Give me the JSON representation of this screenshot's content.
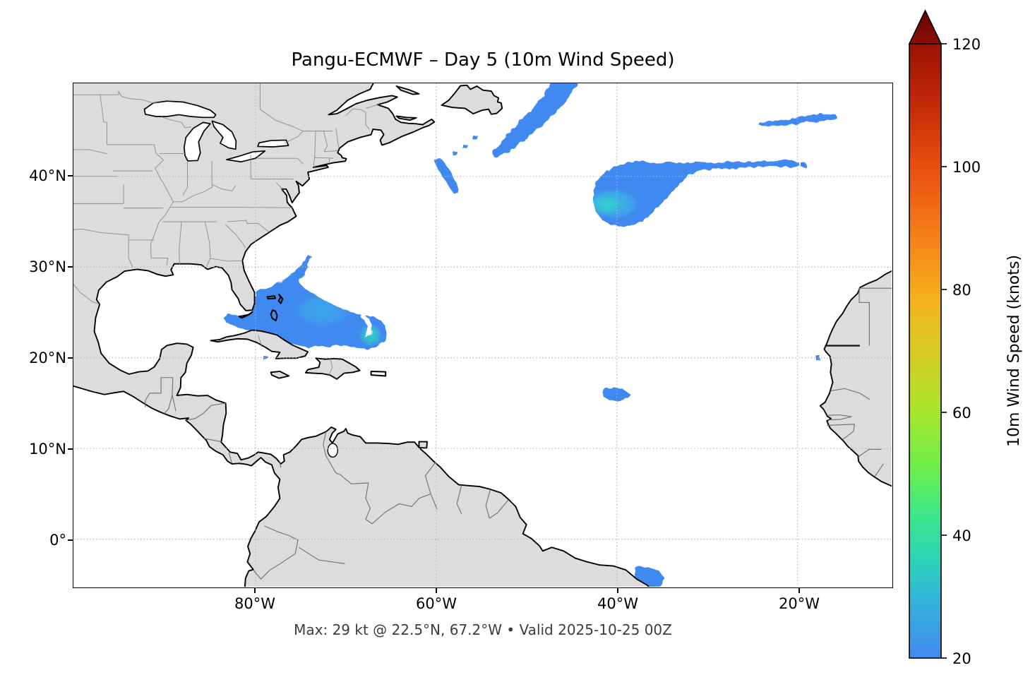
{
  "figure": {
    "title": "Pangu-ECMWF – Day 5 (10m Wind Speed)",
    "caption": "Max: 29 kt @ 22.5°N, 67.2°W • Valid 2025-10-25 00Z"
  },
  "axes": {
    "x_ticks": [
      {
        "label": "80°W",
        "lon": -80
      },
      {
        "label": "60°W",
        "lon": -60
      },
      {
        "label": "40°W",
        "lon": -40
      },
      {
        "label": "20°W",
        "lon": -20
      }
    ],
    "y_ticks": [
      {
        "label": "40°N",
        "lat": 40
      },
      {
        "label": "30°N",
        "lat": 30
      },
      {
        "label": "20°N",
        "lat": 20
      },
      {
        "label": "10°N",
        "lat": 10
      },
      {
        "label": "0°",
        "lat": 0
      }
    ],
    "extent": {
      "lon_min": -100.1,
      "lon_max": -9.7,
      "lat_min": -5.25,
      "lat_max": 50.26
    },
    "grid_color": "#b3b3b3"
  },
  "colorbar": {
    "label": "10m Wind Speed (knots)",
    "min": 20,
    "max": 120,
    "extend": "max",
    "ticks": [
      20,
      40,
      60,
      80,
      100,
      120
    ],
    "gradient": [
      {
        "off": 0.0,
        "c": "#4489f0"
      },
      {
        "off": 0.1,
        "c": "#31b7d8"
      },
      {
        "off": 0.16,
        "c": "#2bd3b5"
      },
      {
        "off": 0.23,
        "c": "#3ae68c"
      },
      {
        "off": 0.3,
        "c": "#66ef50"
      },
      {
        "off": 0.4,
        "c": "#a7e62c"
      },
      {
        "off": 0.5,
        "c": "#d9cb20"
      },
      {
        "off": 0.58,
        "c": "#f3b41c"
      },
      {
        "off": 0.68,
        "c": "#f5821a"
      },
      {
        "off": 0.8,
        "c": "#e94e10"
      },
      {
        "off": 0.9,
        "c": "#c42a08"
      },
      {
        "off": 1.0,
        "c": "#9a1206"
      }
    ],
    "arrow_colors": [
      "#8c0f05",
      "#650301"
    ]
  },
  "map_colors": {
    "land": "#dcdcdc",
    "coast": "#000000",
    "state_border": "#8a8a8a",
    "country_border": "#6e6e6e",
    "ocean": "#ffffff"
  },
  "chart_data": {
    "type": "heatmap",
    "variable": "10m wind speed",
    "units": "knots",
    "threshold_kt": 20,
    "max": {
      "value_kt": 29,
      "lat_deg": 22.5,
      "lon_deg": -67.2
    },
    "palette": {
      "base": "#4189f1",
      "mid": "#3aabe9",
      "core": "#2fd0c3",
      "comet_core": "#39c3dd"
    },
    "features": [
      {
        "id": "bahamas-system",
        "polygon": [
          [
            -79.9,
            27.3
          ],
          [
            -79.0,
            27.6
          ],
          [
            -78.1,
            27.9
          ],
          [
            -77.1,
            28.4
          ],
          [
            -76.2,
            29.1
          ],
          [
            -75.3,
            29.9
          ],
          [
            -74.6,
            30.7
          ],
          [
            -74.15,
            31.3
          ],
          [
            -73.7,
            31.1
          ],
          [
            -74.15,
            30.2
          ],
          [
            -74.7,
            29.2
          ],
          [
            -75.2,
            28.3
          ],
          [
            -74.5,
            27.6
          ],
          [
            -73.5,
            27.0
          ],
          [
            -72.5,
            26.4
          ],
          [
            -71.5,
            25.9
          ],
          [
            -70.4,
            25.4
          ],
          [
            -69.3,
            25.0
          ],
          [
            -68.2,
            24.7
          ],
          [
            -67.1,
            24.55
          ],
          [
            -66.2,
            24.2
          ],
          [
            -65.6,
            23.5
          ],
          [
            -65.45,
            22.6
          ],
          [
            -65.9,
            21.8
          ],
          [
            -66.7,
            21.2
          ],
          [
            -67.7,
            20.95
          ],
          [
            -68.8,
            21.1
          ],
          [
            -69.9,
            21.3
          ],
          [
            -71.0,
            21.4
          ],
          [
            -72.1,
            21.2
          ],
          [
            -73.2,
            21.35
          ],
          [
            -74.3,
            21.15
          ],
          [
            -75.4,
            21.4
          ],
          [
            -76.4,
            21.7
          ],
          [
            -77.4,
            22.0
          ],
          [
            -78.4,
            22.3
          ],
          [
            -79.4,
            22.6
          ],
          [
            -80.4,
            22.9
          ],
          [
            -81.4,
            23.2
          ],
          [
            -82.4,
            23.5
          ],
          [
            -83.2,
            23.85
          ],
          [
            -83.45,
            24.3
          ],
          [
            -83.0,
            24.8
          ],
          [
            -82.2,
            24.7
          ],
          [
            -81.3,
            24.6
          ],
          [
            -80.6,
            24.8
          ],
          [
            -80.25,
            25.5
          ],
          [
            -80.2,
            26.4
          ]
        ],
        "white_notch": [
          [
            -68.15,
            24.8
          ],
          [
            -67.5,
            24.35
          ],
          [
            -67.15,
            23.7
          ],
          [
            -67.1,
            23.0
          ],
          [
            -67.4,
            22.45
          ],
          [
            -67.95,
            22.25
          ],
          [
            -67.65,
            22.9
          ],
          [
            -67.65,
            23.6
          ],
          [
            -68.0,
            24.2
          ],
          [
            -68.45,
            24.55
          ]
        ],
        "cores": [
          {
            "lon": -72.6,
            "lat": 25.2,
            "rx": 3.2,
            "ry": 1.9,
            "color": "#3aabe9",
            "opacity": 0.85
          },
          {
            "lon": -67.25,
            "lat": 22.5,
            "rx": 1.35,
            "ry": 1.2,
            "color": "#2fd0c3",
            "opacity": 1
          }
        ]
      },
      {
        "id": "midatlantic-comet",
        "polygon": [
          [
            -42.6,
            38.2
          ],
          [
            -42.3,
            39.4
          ],
          [
            -41.4,
            40.4
          ],
          [
            -40.1,
            41.1
          ],
          [
            -38.7,
            41.55
          ],
          [
            -37.1,
            41.65
          ],
          [
            -35.6,
            41.45
          ],
          [
            -34.0,
            41.55
          ],
          [
            -32.4,
            41.45
          ],
          [
            -30.8,
            41.6
          ],
          [
            -29.2,
            41.5
          ],
          [
            -27.6,
            41.65
          ],
          [
            -26.0,
            41.55
          ],
          [
            -24.4,
            41.75
          ],
          [
            -22.8,
            41.65
          ],
          [
            -21.2,
            41.8
          ],
          [
            -19.9,
            41.6
          ],
          [
            -19.7,
            41.15
          ],
          [
            -21.1,
            41.05
          ],
          [
            -22.7,
            41.15
          ],
          [
            -24.3,
            40.95
          ],
          [
            -25.9,
            41.0
          ],
          [
            -27.5,
            40.8
          ],
          [
            -29.1,
            40.85
          ],
          [
            -30.7,
            40.65
          ],
          [
            -31.9,
            40.3
          ],
          [
            -32.7,
            39.6
          ],
          [
            -33.5,
            38.7
          ],
          [
            -34.4,
            37.7
          ],
          [
            -35.3,
            36.75
          ],
          [
            -36.2,
            35.85
          ],
          [
            -37.1,
            35.1
          ],
          [
            -38.1,
            34.65
          ],
          [
            -39.4,
            34.5
          ],
          [
            -40.7,
            34.65
          ],
          [
            -41.7,
            35.25
          ],
          [
            -42.35,
            36.2
          ],
          [
            -42.6,
            37.2
          ]
        ],
        "cores": [
          {
            "lon": -40.6,
            "lat": 37.0,
            "rx": 3.0,
            "ry": 1.7,
            "color": "#39c3dd",
            "opacity": 0.9
          },
          {
            "lon": -41.2,
            "lat": 36.9,
            "rx": 1.5,
            "ry": 1.0,
            "color": "#33cfd0",
            "opacity": 0.9
          }
        ]
      },
      {
        "id": "newfoundland-streak",
        "polygon": [
          [
            -53.8,
            42.55
          ],
          [
            -52.9,
            43.6
          ],
          [
            -51.8,
            44.9
          ],
          [
            -50.7,
            46.1
          ],
          [
            -49.5,
            47.4
          ],
          [
            -48.4,
            48.6
          ],
          [
            -47.6,
            49.7
          ],
          [
            -47.3,
            50.4
          ],
          [
            -44.3,
            50.4
          ],
          [
            -44.9,
            49.4
          ],
          [
            -45.8,
            48.2
          ],
          [
            -47.0,
            46.9
          ],
          [
            -48.3,
            45.6
          ],
          [
            -49.7,
            44.4
          ],
          [
            -51.2,
            43.3
          ],
          [
            -52.6,
            42.35
          ],
          [
            -53.5,
            42.05
          ]
        ],
        "cores": []
      },
      {
        "id": "newfoundland-streak-lower",
        "polygon": [
          [
            -60.25,
            41.85
          ],
          [
            -59.4,
            41.9
          ],
          [
            -58.45,
            40.6
          ],
          [
            -57.75,
            39.3
          ],
          [
            -57.5,
            38.1
          ],
          [
            -58.1,
            38.15
          ],
          [
            -58.95,
            39.5
          ],
          [
            -59.85,
            40.8
          ]
        ],
        "cores": []
      },
      {
        "id": "northeast-thin-streak",
        "polygon": [
          [
            -24.2,
            45.85
          ],
          [
            -22.5,
            46.15
          ],
          [
            -20.8,
            46.25
          ],
          [
            -19.0,
            46.7
          ],
          [
            -17.2,
            46.9
          ],
          [
            -15.75,
            46.8
          ],
          [
            -15.6,
            46.35
          ],
          [
            -17.4,
            46.1
          ],
          [
            -19.5,
            45.9
          ],
          [
            -21.6,
            45.6
          ],
          [
            -23.4,
            45.55
          ],
          [
            -24.25,
            45.65
          ]
        ],
        "cores": []
      },
      {
        "id": "central-atlantic-patch",
        "polygon": [
          [
            -41.7,
            16.3
          ],
          [
            -40.5,
            16.8
          ],
          [
            -39.3,
            16.5
          ],
          [
            -38.5,
            16.0
          ],
          [
            -39.2,
            15.3
          ],
          [
            -40.7,
            15.2
          ],
          [
            -41.5,
            15.7
          ]
        ],
        "cores": []
      },
      {
        "id": "equatorial-brazil-patch",
        "polygon": [
          [
            -38.0,
            -3.2
          ],
          [
            -36.6,
            -3.0
          ],
          [
            -35.3,
            -3.5
          ],
          [
            -34.8,
            -4.2
          ],
          [
            -35.0,
            -4.9
          ],
          [
            -35.9,
            -5.6
          ],
          [
            -37.6,
            -5.6
          ],
          [
            -38.05,
            -4.2
          ]
        ],
        "cores": []
      }
    ],
    "specks": [
      {
        "lon": -78.9,
        "lat": 20.0
      },
      {
        "lon": -17.75,
        "lat": 20.0
      },
      {
        "lon": -56.85,
        "lat": 43.35
      },
      {
        "lon": -55.7,
        "lat": 44.3
      },
      {
        "lon": -19.35,
        "lat": 41.25
      },
      {
        "lon": -57.9,
        "lat": 42.5
      }
    ]
  }
}
